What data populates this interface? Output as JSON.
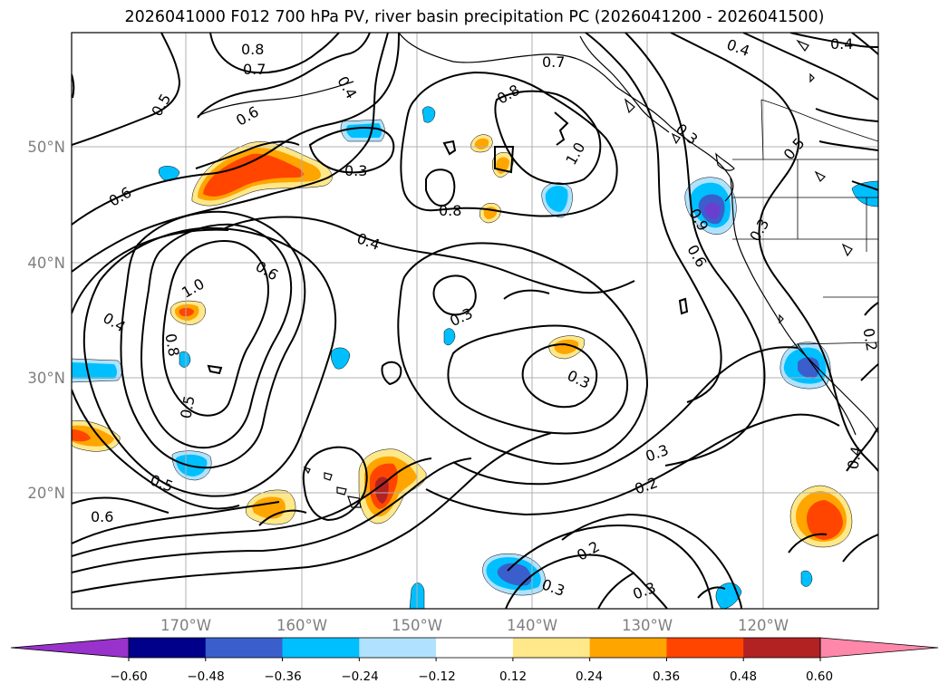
{
  "title": "2026041000 F012 700 hPa PV, river basin precipitation PC (2026041200 - 2026041500)",
  "map": {
    "lon_labels": [
      "170°W",
      "160°W",
      "150°W",
      "140°W",
      "130°W",
      "120°W"
    ],
    "lat_labels": [
      "50°N",
      "40°N",
      "30°N",
      "20°N"
    ],
    "contour_labels": [
      {
        "text": "0.8"
      },
      {
        "text": "0.7"
      },
      {
        "text": "0.5"
      },
      {
        "text": "0.6"
      },
      {
        "text": "0.4"
      },
      {
        "text": "0.3"
      },
      {
        "text": "0.7"
      },
      {
        "text": "0.8"
      },
      {
        "text": "1.0"
      },
      {
        "text": "0.4"
      },
      {
        "text": "0.4"
      },
      {
        "text": "0.5"
      },
      {
        "text": "0.6"
      },
      {
        "text": "0.8"
      },
      {
        "text": "0.4"
      },
      {
        "text": "0.6"
      },
      {
        "text": "1.0"
      },
      {
        "text": "0.3"
      },
      {
        "text": "0.6"
      },
      {
        "text": "0.4"
      },
      {
        "text": "0.8"
      },
      {
        "text": "0.5"
      },
      {
        "text": "0.3"
      },
      {
        "text": "0.3"
      },
      {
        "text": "0.3"
      },
      {
        "text": "0.2"
      },
      {
        "text": "0.2"
      },
      {
        "text": "0.4"
      },
      {
        "text": "0.5"
      },
      {
        "text": "0.6"
      },
      {
        "text": "0.3"
      },
      {
        "text": "0.2"
      },
      {
        "text": "0.3"
      },
      {
        "text": "0.9"
      },
      {
        "text": "0.3"
      }
    ]
  },
  "colorbar": {
    "ticks": [
      "−0.60",
      "−0.48",
      "−0.36",
      "−0.24",
      "−0.12",
      "0.12",
      "0.24",
      "0.36",
      "0.48",
      "0.60"
    ],
    "colors": [
      "#9932cc",
      "#00008b",
      "#3a5fcd",
      "#00bfff",
      "#b0e2ff",
      "#ffffff",
      "#ffe88a",
      "#ffa500",
      "#ff4500",
      "#b22222",
      "#ff88aa"
    ]
  },
  "colors": {
    "light_blue": "#b0e2ff",
    "blue": "#00bfff",
    "mid_blue": "#3a5fcd",
    "purple": "#6a3fd0",
    "light_yellow": "#ffe88a",
    "orange": "#ffa500",
    "red_orange": "#ff4500",
    "dark_red": "#b22222"
  }
}
